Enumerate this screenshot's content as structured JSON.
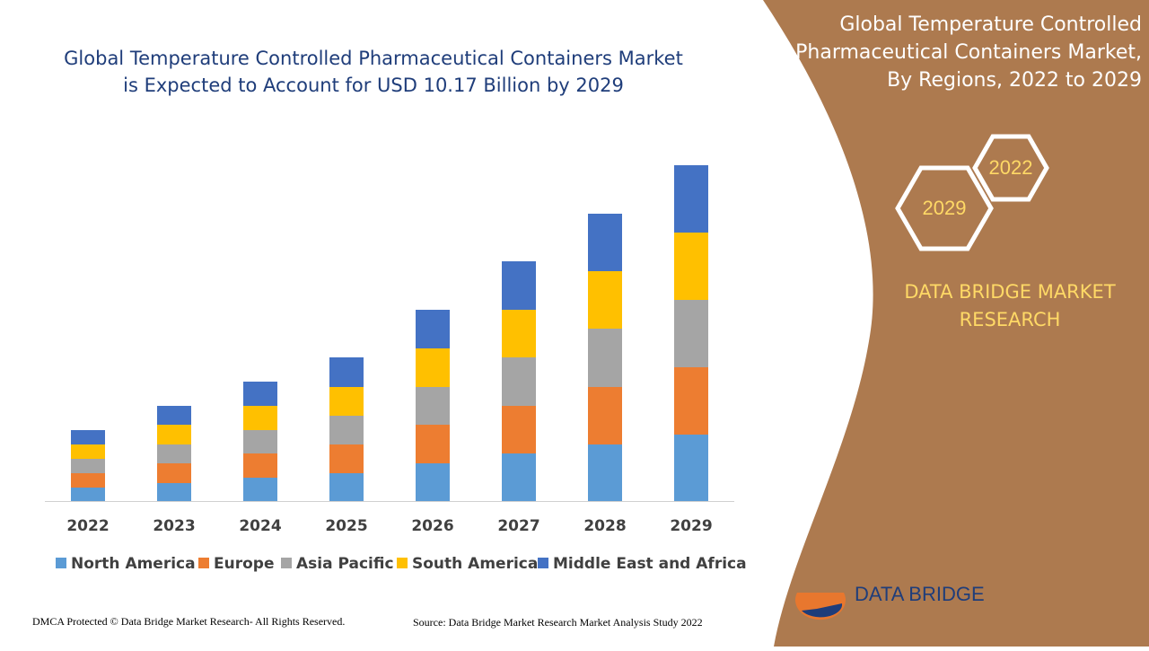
{
  "chart_data": {
    "type": "stacked-bar",
    "title": "Global Temperature Controlled Pharmaceutical Containers Market is Expected to Account for USD 10.17 Billion by 2029",
    "categories": [
      "2022",
      "2023",
      "2024",
      "2025",
      "2026",
      "2027",
      "2028",
      "2029"
    ],
    "series": [
      {
        "name": "North America",
        "color": "#5b9bd5",
        "values": [
          15,
          20,
          26,
          31,
          42,
          53,
          63,
          74
        ]
      },
      {
        "name": "Europe",
        "color": "#ed7d31",
        "values": [
          16,
          22,
          27,
          32,
          43,
          53,
          64,
          75
        ]
      },
      {
        "name": "Asia Pacific",
        "color": "#a5a5a5",
        "values": [
          16,
          21,
          26,
          32,
          42,
          54,
          65,
          75
        ]
      },
      {
        "name": "South America",
        "color": "#ffc000",
        "values": [
          16,
          22,
          27,
          32,
          43,
          53,
          64,
          75
        ]
      },
      {
        "name": "Middle East and Africa",
        "color": "#4472c4",
        "values": [
          16,
          21,
          27,
          33,
          43,
          54,
          64,
          75
        ]
      }
    ],
    "legend": "bottom"
  },
  "panel": {
    "title": "Global Temperature Controlled Pharmaceutical Containers Market, By Regions, 2022 to 2029",
    "hex_labels": [
      "2022",
      "2029"
    ],
    "brand": "DATA BRIDGE MARKET RESEARCH",
    "logo": "DATA BRIDGE"
  },
  "footer": {
    "left": "DMCA Protected © Data Bridge Market Research- All Rights Reserved.",
    "right": "Source: Data Bridge Market Research Market Analysis Study 2022"
  }
}
